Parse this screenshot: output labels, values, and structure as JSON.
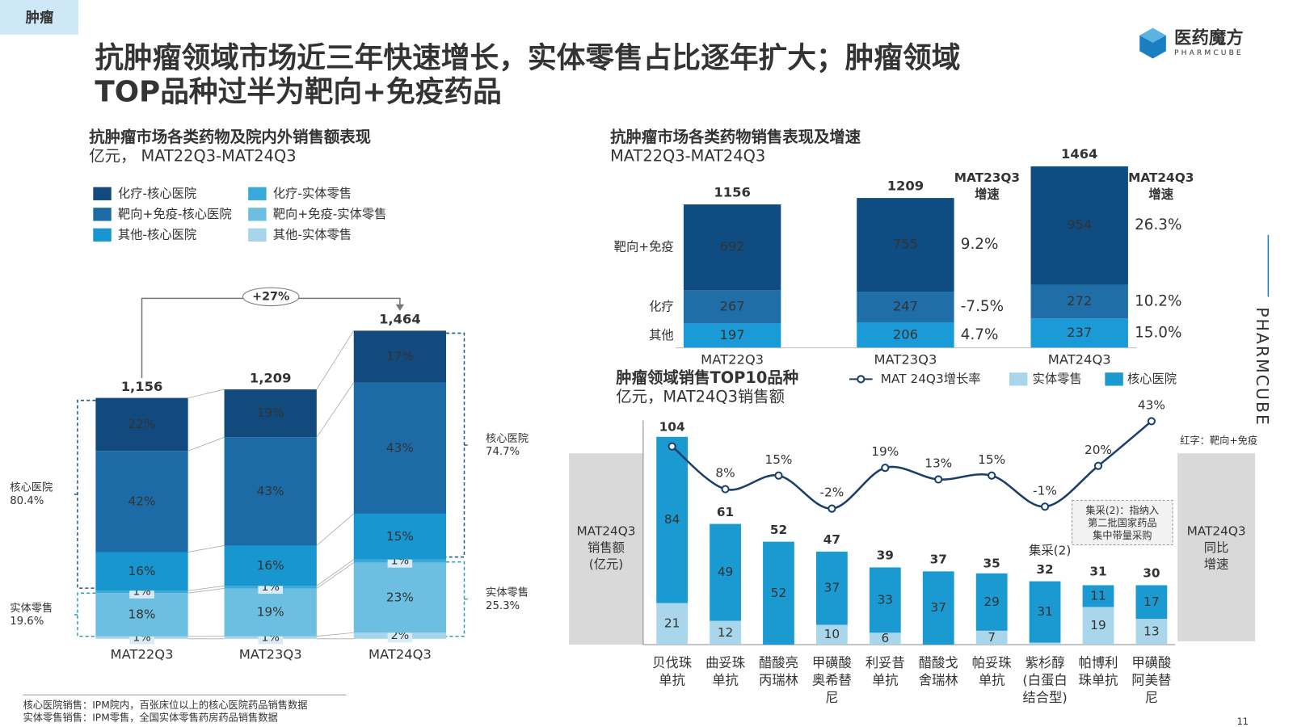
{
  "tag": "肿瘤",
  "title": [
    "抗肿瘤领域市场近三年快速增长，实体零售占比逐年扩大；肿瘤领域",
    "TOP品种过半为靶向+免疫药品"
  ],
  "brand": {
    "name": "医药魔方",
    "en": "PHARMCUBE"
  },
  "chart_data": [
    {
      "type": "stacked100",
      "title": "抗肿瘤市场各类药物及院内外销售额表现",
      "subtitle": "亿元， MAT22Q3-MAT24Q3",
      "categories": [
        "MAT22Q3",
        "MAT23Q3",
        "MAT24Q3"
      ],
      "totals": [
        1156,
        1209,
        1464
      ],
      "total_labels": [
        "1,156",
        "1,209",
        "1,464"
      ],
      "series": [
        {
          "name": "其他-实体零售",
          "color": "#a6d4ea",
          "values": [
            1,
            1,
            2
          ],
          "value_labels": [
            "1%",
            "1%",
            "2%"
          ]
        },
        {
          "name": "靶向+免疫-实体零售",
          "color": "#6cbfe0",
          "values": [
            18,
            19,
            23
          ],
          "value_labels": [
            "18%",
            "19%",
            "23%"
          ]
        },
        {
          "name": "化疗-实体零售",
          "color": "#38a9da",
          "values": [
            1,
            1,
            1
          ],
          "value_labels": [
            "1%",
            "1%",
            "1%"
          ]
        },
        {
          "name": "其他-核心医院",
          "color": "#1796cf",
          "values": [
            16,
            16,
            15
          ],
          "value_labels": [
            "16%",
            "16%",
            "15%"
          ]
        },
        {
          "name": "靶向+免疫-核心医院",
          "color": "#1d6ba6",
          "values": [
            42,
            43,
            43
          ],
          "value_labels": [
            "42%",
            "43%",
            "43%"
          ]
        },
        {
          "name": "化疗-核心医院",
          "color": "#124a7e",
          "values": [
            22,
            19,
            17
          ],
          "value_labels": [
            "22%",
            "19%",
            "17%"
          ]
        }
      ],
      "growth": {
        "value": 27,
        "label": "+27%"
      },
      "groups": [
        {
          "name": "核心医院",
          "color": "#1d5a8e",
          "values": [
            80.4,
            74.7
          ],
          "value_labels": [
            "80.4%",
            "74.7%"
          ]
        },
        {
          "name": "实体零售",
          "color": "#2a9fbf",
          "values": [
            19.6,
            25.3
          ],
          "value_labels": [
            "19.6%",
            "25.3%"
          ]
        }
      ]
    },
    {
      "type": "stacked",
      "title": "抗肿瘤市场各类药物销售表现及增速",
      "subtitle": "MAT22Q3-MAT24Q3",
      "categories": [
        "MAT22Q3",
        "MAT23Q3",
        "MAT24Q3"
      ],
      "totals": [
        1156,
        1209,
        1464
      ],
      "series": [
        {
          "name": "其他",
          "color": "#1a9ad6",
          "values": [
            197,
            206,
            237
          ]
        },
        {
          "name": "化疗",
          "color": "#1f6ea8",
          "values": [
            267,
            247,
            272
          ]
        },
        {
          "name": "靶向+免疫",
          "color": "#0f4c81",
          "values": [
            692,
            755,
            954
          ]
        }
      ],
      "growth": [
        {
          "header": [
            "MAT23Q3",
            "增速"
          ],
          "values": [
            4.7,
            -7.5,
            9.2
          ],
          "value_labels": [
            "4.7%",
            "-7.5%",
            "9.2%"
          ]
        },
        {
          "header": [
            "MAT24Q3",
            "增速"
          ],
          "values": [
            15.0,
            10.2,
            26.3
          ],
          "value_labels": [
            "15.0%",
            "10.2%",
            "26.3%"
          ]
        }
      ],
      "growth_color": "#1a7fc0"
    },
    {
      "type": "combo",
      "title": "肿瘤领域销售TOP10品种",
      "subtitle": "亿元，MAT24Q3销售额",
      "categories": [
        [
          "贝伐珠",
          "单抗"
        ],
        [
          "曲妥珠",
          "单抗"
        ],
        [
          "醋酸亮",
          "丙瑞林"
        ],
        [
          "甲磺酸",
          "奥希替",
          "尼"
        ],
        [
          "利妥昔",
          "单抗"
        ],
        [
          "醋酸戈",
          "舍瑞林"
        ],
        [
          "帕妥珠",
          "单抗"
        ],
        [
          "紫杉醇",
          "(白蛋白",
          "结合型)"
        ],
        [
          "帕博利",
          "珠单抗"
        ],
        [
          "甲磺酸",
          "阿美替",
          "尼"
        ]
      ],
      "highlight": [
        true,
        true,
        false,
        true,
        true,
        false,
        true,
        false,
        true,
        true
      ],
      "highlight_color": "#e8231e",
      "highlight_note": "红字：靶向+免疫",
      "totals": [
        104,
        61,
        52,
        47,
        39,
        37,
        35,
        32,
        31,
        30
      ],
      "series": [
        {
          "name": "实体零售",
          "color": "#a9d6ea",
          "values": [
            21,
            12,
            null,
            10,
            6,
            null,
            7,
            1,
            19,
            13
          ]
        },
        {
          "name": "核心医院",
          "color": "#1b99d1",
          "values": [
            84,
            49,
            52,
            37,
            33,
            37,
            29,
            31,
            11,
            17
          ]
        },
        {
          "name": "MAT 24Q3增长率",
          "type": "line",
          "color": "#1a3f6b",
          "values": [
            30,
            8,
            15,
            -2,
            19,
            13,
            15,
            -1,
            20,
            43
          ],
          "value_labels": [
            null,
            "8%",
            "15%",
            "-2%",
            "19%",
            "13%",
            "15%",
            "-1%",
            "20%",
            "43%"
          ]
        }
      ],
      "left_label": [
        "MAT24Q3",
        "销售额",
        "(亿元)"
      ],
      "right_label": [
        "MAT24Q3",
        "同比",
        "增速"
      ],
      "callout": {
        "index": 7,
        "label": "集采(2)"
      },
      "note": [
        "集采(2)：指纳入",
        "第二批国家药品",
        "集中带量采购"
      ]
    }
  ],
  "footnotes": [
    "核心医院销售：IPM院内，百张床位以上的核心医院药品销售数据",
    "实体零售销售：IPM零售，全国实体零售药房药品销售数据"
  ],
  "page_number": 11
}
